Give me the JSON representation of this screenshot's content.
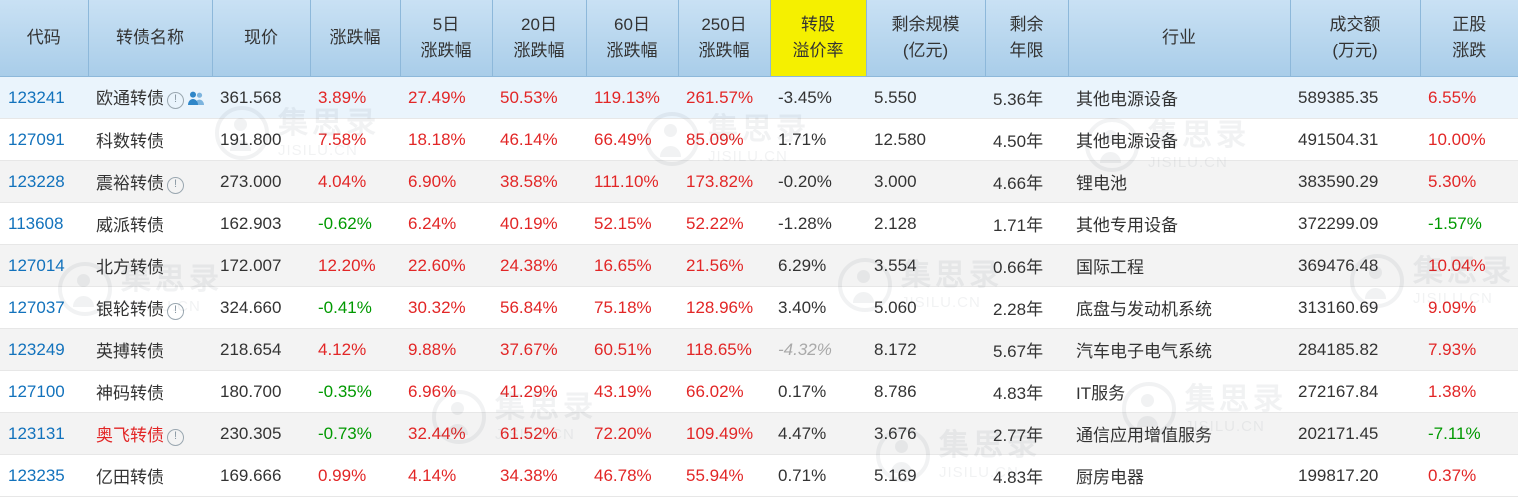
{
  "colors": {
    "up": "#e22626",
    "down": "#009900",
    "code_link": "#1272bc",
    "header_highlight": "#f5f000"
  },
  "watermark": {
    "brand": "集思录",
    "domain": "JISILU.CN"
  },
  "table": {
    "columns": [
      {
        "key": "code",
        "lines": [
          "代码"
        ]
      },
      {
        "key": "name",
        "lines": [
          "转债名称"
        ]
      },
      {
        "key": "price",
        "lines": [
          "现价"
        ]
      },
      {
        "key": "chg",
        "lines": [
          "涨跌幅"
        ]
      },
      {
        "key": "chg5",
        "lines": [
          "5日",
          "涨跌幅"
        ]
      },
      {
        "key": "chg20",
        "lines": [
          "20日",
          "涨跌幅"
        ]
      },
      {
        "key": "chg60",
        "lines": [
          "60日",
          "涨跌幅"
        ]
      },
      {
        "key": "chg250",
        "lines": [
          "250日",
          "涨跌幅"
        ]
      },
      {
        "key": "premium",
        "lines": [
          "转股",
          "溢价率"
        ],
        "highlight": true
      },
      {
        "key": "size",
        "lines": [
          "剩余规模",
          "(亿元)"
        ]
      },
      {
        "key": "years",
        "lines": [
          "剩余",
          "年限"
        ]
      },
      {
        "key": "industry",
        "lines": [
          "行业"
        ]
      },
      {
        "key": "turnover",
        "lines": [
          "成交额",
          "(万元)"
        ]
      },
      {
        "key": "stockchg",
        "lines": [
          "正股",
          "涨跌"
        ]
      }
    ],
    "rows": [
      {
        "code": "123241",
        "name": "欧通转债",
        "icons": [
          "info",
          "holders"
        ],
        "highlight": true,
        "price": "361.568",
        "chg": "3.89%",
        "chg5": "27.49%",
        "chg20": "50.53%",
        "chg60": "119.13%",
        "chg250": "261.57%",
        "premium": "-3.45%",
        "size": "5.550",
        "years": "5.36年",
        "industry": "其他电源设备",
        "turnover": "589385.35",
        "stockchg": "6.55%"
      },
      {
        "code": "127091",
        "name": "科数转债",
        "icons": [],
        "price": "191.800",
        "chg": "7.58%",
        "chg5": "18.18%",
        "chg20": "46.14%",
        "chg60": "66.49%",
        "chg250": "85.09%",
        "premium": "1.71%",
        "size": "12.580",
        "years": "4.50年",
        "industry": "其他电源设备",
        "turnover": "491504.31",
        "stockchg": "10.00%"
      },
      {
        "code": "123228",
        "name": "震裕转债",
        "icons": [
          "info"
        ],
        "price": "273.000",
        "chg": "4.04%",
        "chg5": "6.90%",
        "chg20": "38.58%",
        "chg60": "111.10%",
        "chg250": "173.82%",
        "premium": "-0.20%",
        "size": "3.000",
        "years": "4.66年",
        "industry": "锂电池",
        "turnover": "383590.29",
        "stockchg": "5.30%"
      },
      {
        "code": "113608",
        "name": "威派转债",
        "icons": [],
        "price": "162.903",
        "chg": "-0.62%",
        "chg5": "6.24%",
        "chg20": "40.19%",
        "chg60": "52.15%",
        "chg250": "52.22%",
        "premium": "-1.28%",
        "size": "2.128",
        "years": "1.71年",
        "industry": "其他专用设备",
        "turnover": "372299.09",
        "stockchg": "-1.57%"
      },
      {
        "code": "127014",
        "name": "北方转债",
        "icons": [],
        "price": "172.007",
        "chg": "12.20%",
        "chg5": "22.60%",
        "chg20": "24.38%",
        "chg60": "16.65%",
        "chg250": "21.56%",
        "premium": "6.29%",
        "size": "3.554",
        "years": "0.66年",
        "industry": "国际工程",
        "turnover": "369476.48",
        "stockchg": "10.04%"
      },
      {
        "code": "127037",
        "name": "银轮转债",
        "icons": [
          "info"
        ],
        "price": "324.660",
        "chg": "-0.41%",
        "chg5": "30.32%",
        "chg20": "56.84%",
        "chg60": "75.18%",
        "chg250": "128.96%",
        "premium": "3.40%",
        "size": "5.060",
        "years": "2.28年",
        "industry": "底盘与发动机系统",
        "turnover": "313160.69",
        "stockchg": "9.09%"
      },
      {
        "code": "123249",
        "name": "英搏转债",
        "icons": [],
        "price": "218.654",
        "chg": "4.12%",
        "chg5": "9.88%",
        "chg20": "37.67%",
        "chg60": "60.51%",
        "chg250": "118.65%",
        "premium": "-4.32%",
        "premium_muted": true,
        "size": "8.172",
        "years": "5.67年",
        "industry": "汽车电子电气系统",
        "turnover": "284185.82",
        "stockchg": "7.93%"
      },
      {
        "code": "127100",
        "name": "神码转债",
        "icons": [],
        "price": "180.700",
        "chg": "-0.35%",
        "chg5": "6.96%",
        "chg20": "41.29%",
        "chg60": "43.19%",
        "chg250": "66.02%",
        "premium": "0.17%",
        "size": "8.786",
        "years": "4.83年",
        "industry": "IT服务",
        "turnover": "272167.84",
        "stockchg": "1.38%"
      },
      {
        "code": "123131",
        "name": "奥飞转债",
        "icons": [
          "info"
        ],
        "name_red": true,
        "price": "230.305",
        "chg": "-0.73%",
        "chg5": "32.44%",
        "chg20": "61.52%",
        "chg60": "72.20%",
        "chg250": "109.49%",
        "premium": "4.47%",
        "size": "3.676",
        "years": "2.77年",
        "industry": "通信应用增值服务",
        "turnover": "202171.45",
        "stockchg": "-7.11%"
      },
      {
        "code": "123235",
        "name": "亿田转债",
        "icons": [],
        "price": "169.666",
        "chg": "0.99%",
        "chg5": "4.14%",
        "chg20": "34.38%",
        "chg60": "46.78%",
        "chg250": "55.94%",
        "premium": "0.71%",
        "size": "5.169",
        "years": "4.83年",
        "industry": "厨房电器",
        "turnover": "199817.20",
        "stockchg": "0.37%"
      }
    ]
  }
}
